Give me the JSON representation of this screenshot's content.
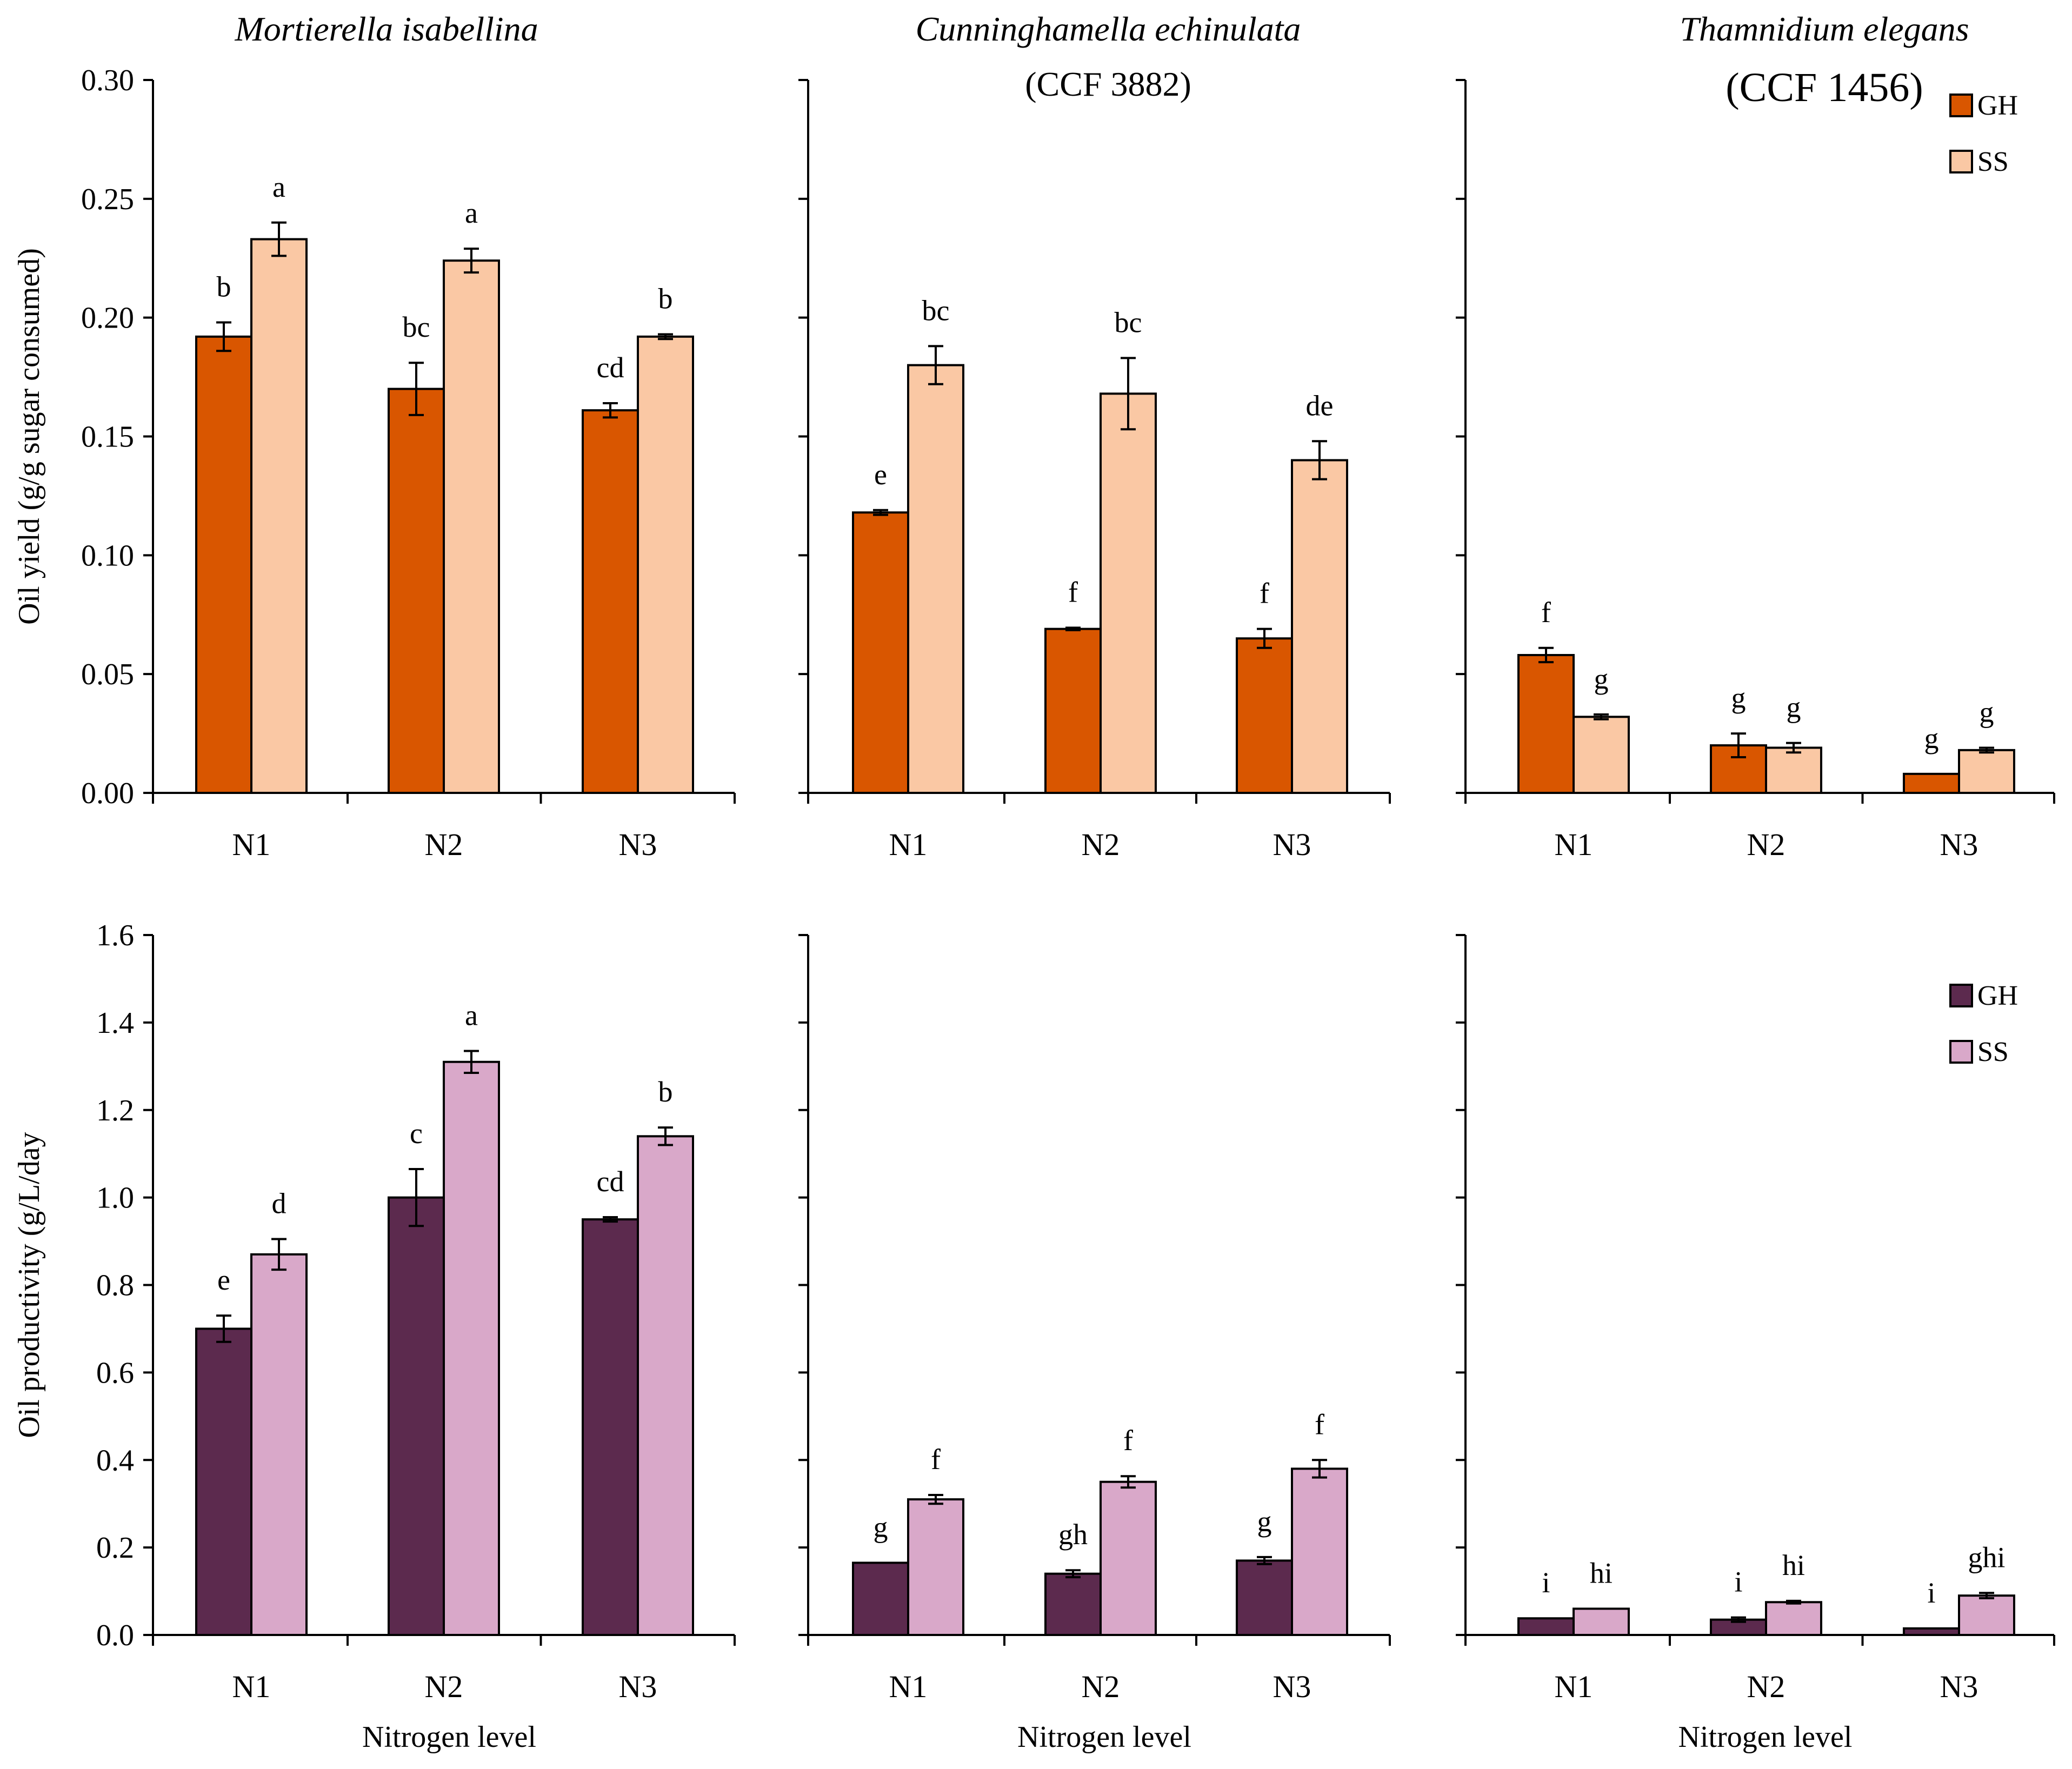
{
  "chart_data": [
    {
      "type": "bar",
      "panel": "oil-yield-mortierella",
      "title": "Mortierella isabellina",
      "subtitle": "",
      "categories": [
        "N1",
        "N2",
        "N3"
      ],
      "xlabel": "",
      "ylabel": "Oil yield (g/g sugar consumed)",
      "ylim": [
        0,
        0.3
      ],
      "yticks": [
        "0.00",
        "0.05",
        "0.10",
        "0.15",
        "0.20",
        "0.25",
        "0.30"
      ],
      "series": [
        {
          "name": "GH",
          "values": [
            0.192,
            0.17,
            0.161
          ],
          "errors": [
            0.006,
            0.011,
            0.003
          ],
          "letters": [
            "b",
            "bc",
            "cd"
          ]
        },
        {
          "name": "SS",
          "values": [
            0.233,
            0.224,
            0.192
          ],
          "errors": [
            0.007,
            0.005,
            0.001
          ],
          "letters": [
            "a",
            "a",
            "b"
          ]
        }
      ],
      "legend": null
    },
    {
      "type": "bar",
      "panel": "oil-yield-cunninghamella",
      "title": "Cunninghamella echinulata",
      "subtitle": "(CCF 3882)",
      "categories": [
        "N1",
        "N2",
        "N3"
      ],
      "xlabel": "",
      "ylabel": "",
      "ylim": [
        0,
        0.3
      ],
      "series": [
        {
          "name": "GH",
          "values": [
            0.118,
            0.069,
            0.065
          ],
          "errors": [
            0.001,
            0.0005,
            0.004
          ],
          "letters": [
            "e",
            "f",
            "f"
          ]
        },
        {
          "name": "SS",
          "values": [
            0.18,
            0.168,
            0.14
          ],
          "errors": [
            0.008,
            0.015,
            0.008
          ],
          "letters": [
            "bc",
            "bc",
            "de"
          ]
        }
      ],
      "legend": null
    },
    {
      "type": "bar",
      "panel": "oil-yield-thamnidium",
      "title": "Thamnidium elegans",
      "subtitle": "(CCF 1456)",
      "categories": [
        "N1",
        "N2",
        "N3"
      ],
      "xlabel": "",
      "ylabel": "",
      "ylim": [
        0,
        0.3
      ],
      "series": [
        {
          "name": "GH",
          "values": [
            0.058,
            0.02,
            0.008
          ],
          "errors": [
            0.003,
            0.005,
            0.0
          ],
          "letters": [
            "f",
            "g",
            "g"
          ]
        },
        {
          "name": "SS",
          "values": [
            0.032,
            0.019,
            0.018
          ],
          "errors": [
            0.001,
            0.002,
            0.001
          ],
          "letters": [
            "g",
            "g",
            "g"
          ]
        }
      ],
      "legend": {
        "position": "top-right",
        "entries": [
          "GH",
          "SS"
        ]
      }
    },
    {
      "type": "bar",
      "panel": "oil-productivity-mortierella",
      "title": "",
      "subtitle": "",
      "categories": [
        "N1",
        "N2",
        "N3"
      ],
      "xlabel": "Nitrogen level",
      "ylabel": "Oil productivity (g/L/day",
      "ylim": [
        0,
        1.6
      ],
      "yticks": [
        "0.0",
        "0.2",
        "0.4",
        "0.6",
        "0.8",
        "1.0",
        "1.2",
        "1.4",
        "1.6"
      ],
      "series": [
        {
          "name": "GH",
          "values": [
            0.7,
            1.0,
            0.95
          ],
          "errors": [
            0.03,
            0.065,
            0.005
          ],
          "letters": [
            "e",
            "c",
            "cd"
          ]
        },
        {
          "name": "SS",
          "values": [
            0.87,
            1.31,
            1.14
          ],
          "errors": [
            0.035,
            0.025,
            0.02
          ],
          "letters": [
            "d",
            "a",
            "b"
          ]
        }
      ],
      "legend": null
    },
    {
      "type": "bar",
      "panel": "oil-productivity-cunninghamella",
      "title": "",
      "subtitle": "",
      "categories": [
        "N1",
        "N2",
        "N3"
      ],
      "xlabel": "Nitrogen level",
      "ylabel": "",
      "ylim": [
        0,
        1.6
      ],
      "series": [
        {
          "name": "GH",
          "values": [
            0.165,
            0.14,
            0.17
          ],
          "errors": [
            0.0,
            0.008,
            0.008
          ],
          "letters": [
            "g",
            "gh",
            "g"
          ]
        },
        {
          "name": "SS",
          "values": [
            0.31,
            0.35,
            0.38
          ],
          "errors": [
            0.01,
            0.013,
            0.02
          ],
          "letters": [
            "f",
            "f",
            "f"
          ]
        }
      ],
      "legend": null
    },
    {
      "type": "bar",
      "panel": "oil-productivity-thamnidium",
      "title": "",
      "subtitle": "",
      "categories": [
        "N1",
        "N2",
        "N3"
      ],
      "xlabel": "Nitrogen level",
      "ylabel": "",
      "ylim": [
        0,
        1.6
      ],
      "series": [
        {
          "name": "GH",
          "values": [
            0.038,
            0.035,
            0.015
          ],
          "errors": [
            0.0,
            0.005,
            0.0
          ],
          "letters": [
            "i",
            "i",
            "i"
          ]
        },
        {
          "name": "SS",
          "values": [
            0.06,
            0.075,
            0.09
          ],
          "errors": [
            0.0,
            0.003,
            0.006
          ],
          "letters": [
            "hi",
            "hi",
            "ghi"
          ]
        }
      ],
      "legend": {
        "position": "right",
        "entries": [
          "GH",
          "SS"
        ]
      }
    }
  ],
  "colors": {
    "yield_gh": "#d95600",
    "yield_ss": "#fac8a4",
    "productivity_gh": "#5c2a4e",
    "productivity_ss": "#d9a8c9",
    "axis": "#000000"
  }
}
